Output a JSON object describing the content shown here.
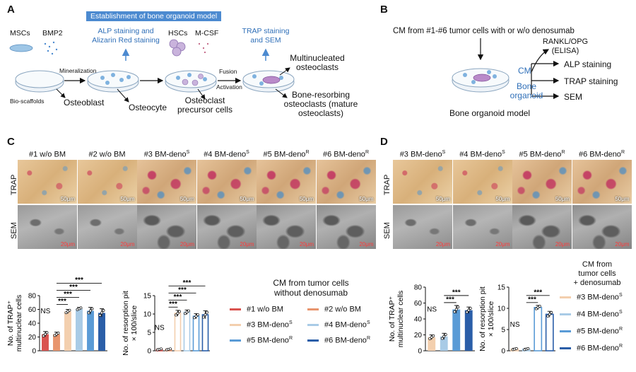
{
  "panels": {
    "a": "A",
    "b": "B",
    "c": "C",
    "d": "D"
  },
  "A": {
    "banner": "Establishment of bone organoid model",
    "mscs": "MSCs",
    "bmp2": "BMP2",
    "alp_alizarin": [
      "ALP staining and",
      "Alizarin Red staining"
    ],
    "hscs": "HSCs",
    "mcsf": "M-CSF",
    "trap_sem": [
      "TRAP staining",
      "and SEM"
    ],
    "mineralization": "Mineralization",
    "bioscaffolds": "Bio-scaffolds",
    "osteoblast": "Osteoblast",
    "osteocyte": "Osteocyte",
    "precursor": [
      "Osteoclast",
      "precursor cells"
    ],
    "fusion": "Fusion",
    "activation": "Activation",
    "multinucleated": [
      "Multinucleated",
      "osteoclasts"
    ],
    "resorbing": [
      "Bone-resorbing",
      "osteoclasts (mature",
      "osteoclasts)"
    ]
  },
  "B": {
    "cm_title": "CM from #1-#6 tumor cells with or w/o denosumab",
    "rankl": [
      "RANKL/OPG",
      "(ELISA)"
    ],
    "cm": "CM",
    "organoid": [
      "Bone",
      "organoid"
    ],
    "outputs": [
      "ALP staining",
      "TRAP staining",
      "SEM"
    ],
    "caption": "Bone organoid model"
  },
  "C": {
    "rows": [
      "TRAP",
      "SEM"
    ],
    "cols": [
      {
        "base": "#1 w/o BM",
        "sup": ""
      },
      {
        "base": "#2 w/o BM",
        "sup": ""
      },
      {
        "base": "#3 BM-deno",
        "sup": "S"
      },
      {
        "base": "#4 BM-deno",
        "sup": "S"
      },
      {
        "base": "#5 BM-deno",
        "sup": "R"
      },
      {
        "base": "#6 BM-deno",
        "sup": "R"
      }
    ],
    "scale_trap": "50μm",
    "scale_sem": "20μm",
    "legend_title": [
      "CM from tumor cells",
      "without denosumab"
    ],
    "legend": [
      {
        "base": "#1 w/o BM",
        "sup": ""
      },
      {
        "base": "#2 w/o BM",
        "sup": ""
      },
      {
        "base": "#3 BM-deno",
        "sup": "S"
      },
      {
        "base": "#4 BM-deno",
        "sup": "S"
      },
      {
        "base": "#5 BM-deno",
        "sup": "R"
      },
      {
        "base": "#6 BM-deno",
        "sup": "R"
      }
    ]
  },
  "D": {
    "rows": [
      "TRAP",
      "SEM"
    ],
    "cols": [
      {
        "base": "#3 BM-deno",
        "sup": "S"
      },
      {
        "base": "#4 BM-deno",
        "sup": "S"
      },
      {
        "base": "#5 BM-deno",
        "sup": "R"
      },
      {
        "base": "#6 BM-deno",
        "sup": "R"
      }
    ],
    "scale_trap": "50μm",
    "scale_sem": "20μm",
    "legend_title": [
      "CM from",
      "tumor cells",
      "+ denosumab"
    ],
    "legend": [
      {
        "base": "#3 BM-deno",
        "sup": "S"
      },
      {
        "base": "#4 BM-deno",
        "sup": "S"
      },
      {
        "base": "#5 BM-deno",
        "sup": "R"
      },
      {
        "base": "#6 BM-deno",
        "sup": "R"
      }
    ]
  },
  "colors": [
    "#d9534f",
    "#e8956e",
    "#f3cfae",
    "#a9cbe6",
    "#5a9bd6",
    "#2a5ea8"
  ],
  "chart_data": [
    {
      "id": "c-trap",
      "type": "bar",
      "ylabel": [
        "No. of TRAP⁺",
        "multinuclear cells"
      ],
      "ylim": [
        0,
        80
      ],
      "yticks": [
        0,
        20,
        40,
        60,
        80
      ],
      "categories": [
        "#1",
        "#2",
        "#3",
        "#4",
        "#5",
        "#6"
      ],
      "values": [
        24,
        24,
        57,
        61,
        58,
        55
      ],
      "errors": [
        4,
        3,
        3,
        2,
        5,
        6
      ],
      "sig": [
        "NS",
        "***",
        "***",
        "***",
        "***"
      ],
      "colorIdx": [
        0,
        1,
        2,
        3,
        4,
        5
      ],
      "filled": [
        true,
        true,
        true,
        true,
        true,
        true
      ]
    },
    {
      "id": "c-pit",
      "type": "bar",
      "ylabel": [
        "No. of resorption pit",
        "× 100/slice"
      ],
      "ylim": [
        0,
        15
      ],
      "yticks": [
        0,
        5,
        10,
        15
      ],
      "categories": [
        "#1",
        "#2",
        "#3",
        "#4",
        "#5",
        "#6"
      ],
      "values": [
        0.4,
        0.4,
        10.2,
        10.5,
        9.4,
        9.8
      ],
      "errors": [
        0.2,
        0.2,
        0.8,
        0.6,
        0.7,
        1.1
      ],
      "sig": [
        "NS",
        "***",
        "***",
        "***",
        "***"
      ],
      "colorIdx": [
        0,
        1,
        2,
        3,
        4,
        5
      ],
      "filled": [
        false,
        false,
        false,
        false,
        false,
        false
      ]
    },
    {
      "id": "d-trap",
      "type": "bar",
      "ylabel": [
        "No. of TRAP⁺",
        "multinuclear cells"
      ],
      "ylim": [
        0,
        80
      ],
      "yticks": [
        0,
        20,
        40,
        60,
        80
      ],
      "categories": [
        "#3",
        "#4",
        "#5",
        "#6"
      ],
      "values": [
        17,
        18,
        52,
        51
      ],
      "errors": [
        3,
        4,
        5,
        4
      ],
      "sig": [
        "NS",
        "***",
        "***"
      ],
      "colorIdx": [
        2,
        3,
        4,
        5
      ],
      "filled": [
        true,
        true,
        true,
        true
      ]
    },
    {
      "id": "d-pit",
      "type": "bar",
      "ylabel": [
        "No. of resorption pit",
        "× 100/slice"
      ],
      "ylim": [
        0,
        15
      ],
      "yticks": [
        0,
        5,
        10,
        15
      ],
      "categories": [
        "#3",
        "#4",
        "#5",
        "#6"
      ],
      "values": [
        0.4,
        0.4,
        10.2,
        8.6
      ],
      "errors": [
        0.2,
        0.2,
        0.5,
        0.7
      ],
      "sig": [
        "NS",
        "***",
        "***"
      ],
      "colorIdx": [
        2,
        3,
        4,
        5
      ],
      "filled": [
        false,
        false,
        false,
        false
      ]
    }
  ]
}
